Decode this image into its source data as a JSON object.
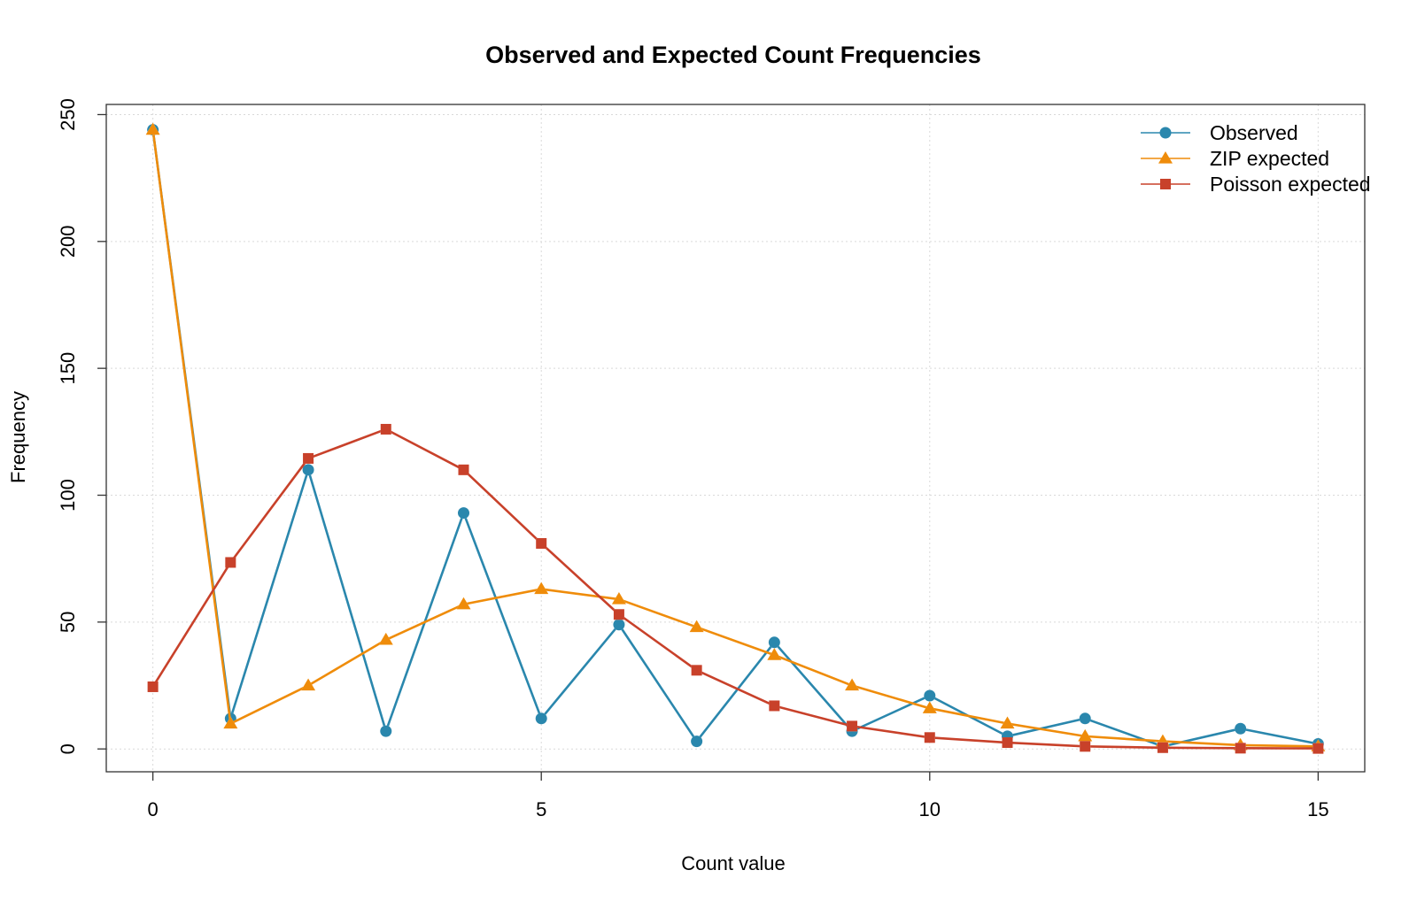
{
  "chart_data": {
    "type": "line",
    "title": "Observed and Expected Count Frequencies",
    "xlabel": "Count value",
    "ylabel": "Frequency",
    "xlim": [
      -0.6,
      15.6
    ],
    "ylim": [
      -9,
      254
    ],
    "x_ticks": [
      "0",
      "5",
      "10",
      "15"
    ],
    "y_ticks": [
      "0",
      "50",
      "100",
      "150",
      "200",
      "250"
    ],
    "grid": true,
    "legend_position": "top-right",
    "x": [
      0,
      1,
      2,
      3,
      4,
      5,
      6,
      7,
      8,
      9,
      10,
      11,
      12,
      13,
      14,
      15
    ],
    "series": [
      {
        "name": "Observed",
        "color": "#2a87ad",
        "marker": "circle",
        "values": [
          244,
          12,
          110,
          7,
          93,
          12,
          49,
          3,
          42,
          7,
          21,
          5,
          12,
          1,
          8,
          2
        ]
      },
      {
        "name": "ZIP expected",
        "color": "#ef8c0a",
        "marker": "triangle",
        "values": [
          244,
          10,
          25,
          43,
          57,
          63,
          59,
          48,
          37,
          25,
          16,
          10,
          5,
          3,
          1.5,
          1
        ]
      },
      {
        "name": "Poisson expected",
        "color": "#c8412a",
        "marker": "square",
        "values": [
          24.5,
          73.5,
          114.5,
          126,
          110,
          81,
          53,
          31,
          17,
          9,
          4.5,
          2.5,
          1,
          0.5,
          0.3,
          0.2
        ]
      }
    ]
  }
}
